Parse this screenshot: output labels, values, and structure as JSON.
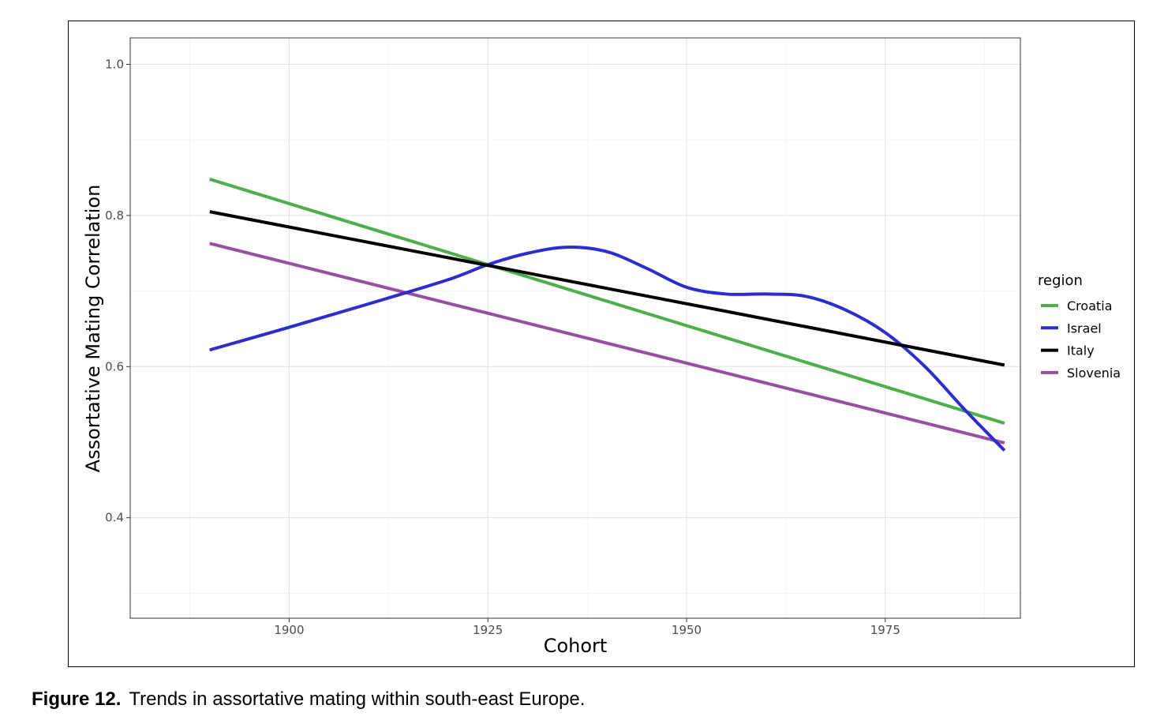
{
  "figure": {
    "label": "Figure 12.",
    "caption": "Trends in assortative mating within south-east Europe."
  },
  "chart_data": {
    "type": "line",
    "title": "",
    "xlabel": "Cohort",
    "ylabel": "Assortative Mating Correlation",
    "xlim": [
      1880,
      1992
    ],
    "ylim": [
      0.267,
      1.035
    ],
    "xticks": [
      1900,
      1925,
      1950,
      1975
    ],
    "yticks": [
      0.4,
      0.6,
      0.8,
      1.0
    ],
    "ytick_labels": [
      "0.4",
      "0.6",
      "0.8",
      "1.0"
    ],
    "grid": true,
    "legend": {
      "title": "region",
      "position": "right"
    },
    "series": [
      {
        "name": "Croatia",
        "color": "#4daf4a",
        "x": [
          1890,
          1990
        ],
        "y": [
          0.848,
          0.525
        ]
      },
      {
        "name": "Israel",
        "color": "#2c2ccf",
        "x": [
          1890,
          1900,
          1910,
          1920,
          1925,
          1930,
          1935,
          1940,
          1945,
          1950,
          1955,
          1960,
          1965,
          1970,
          1975,
          1980,
          1985,
          1990
        ],
        "y": [
          0.622,
          0.652,
          0.683,
          0.715,
          0.735,
          0.75,
          0.758,
          0.752,
          0.73,
          0.705,
          0.696,
          0.696,
          0.693,
          0.675,
          0.645,
          0.6,
          0.543,
          0.489
        ]
      },
      {
        "name": "Italy",
        "color": "#000000",
        "x": [
          1890,
          1990
        ],
        "y": [
          0.805,
          0.602
        ]
      },
      {
        "name": "Slovenia",
        "color": "#984ea3",
        "x": [
          1890,
          1990
        ],
        "y": [
          0.763,
          0.499
        ]
      }
    ]
  }
}
